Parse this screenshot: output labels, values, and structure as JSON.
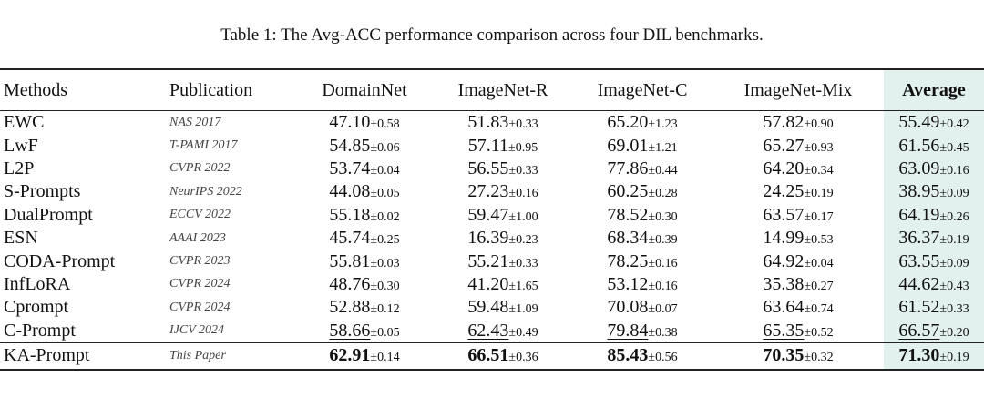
{
  "caption": "Table 1:  The Avg-ACC performance comparison across four DIL benchmarks.",
  "headers": [
    "Methods",
    "Publication",
    "DomainNet",
    "ImageNet-R",
    "ImageNet-C",
    "ImageNet-Mix",
    "Average"
  ],
  "rows": [
    {
      "method": "EWC",
      "pub": "NAS 2017",
      "cells": [
        [
          "47.10",
          "±0.58"
        ],
        [
          "51.83",
          "±0.33"
        ],
        [
          "65.20",
          "±1.23"
        ],
        [
          "57.82",
          "±0.90"
        ],
        [
          "55.49",
          "±0.42"
        ]
      ]
    },
    {
      "method": "LwF",
      "pub": "T-PAMI 2017",
      "cells": [
        [
          "54.85",
          "±0.06"
        ],
        [
          "57.11",
          "±0.95"
        ],
        [
          "69.01",
          "±1.21"
        ],
        [
          "65.27",
          "±0.93"
        ],
        [
          "61.56",
          "±0.45"
        ]
      ]
    },
    {
      "method": "L2P",
      "pub": "CVPR 2022",
      "cells": [
        [
          "53.74",
          "±0.04"
        ],
        [
          "56.55",
          "±0.33"
        ],
        [
          "77.86",
          "±0.44"
        ],
        [
          "64.20",
          "±0.34"
        ],
        [
          "63.09",
          "±0.16"
        ]
      ]
    },
    {
      "method": "S-Prompts",
      "pub": "NeurIPS 2022",
      "cells": [
        [
          "44.08",
          "±0.05"
        ],
        [
          "27.23",
          "±0.16"
        ],
        [
          "60.25",
          "±0.28"
        ],
        [
          "24.25",
          "±0.19"
        ],
        [
          "38.95",
          "±0.09"
        ]
      ]
    },
    {
      "method": "DualPrompt",
      "pub": "ECCV 2022",
      "cells": [
        [
          "55.18",
          "±0.02"
        ],
        [
          "59.47",
          "±1.00"
        ],
        [
          "78.52",
          "±0.30"
        ],
        [
          "63.57",
          "±0.17"
        ],
        [
          "64.19",
          "±0.26"
        ]
      ]
    },
    {
      "method": "ESN",
      "pub": "AAAI 2023",
      "cells": [
        [
          "45.74",
          "±0.25"
        ],
        [
          "16.39",
          "±0.23"
        ],
        [
          "68.34",
          "±0.39"
        ],
        [
          "14.99",
          "±0.53"
        ],
        [
          "36.37",
          "±0.19"
        ]
      ]
    },
    {
      "method": "CODA-Prompt",
      "pub": "CVPR 2023",
      "cells": [
        [
          "55.81",
          "±0.03"
        ],
        [
          "55.21",
          "±0.33"
        ],
        [
          "78.25",
          "±0.16"
        ],
        [
          "64.92",
          "±0.04"
        ],
        [
          "63.55",
          "±0.09"
        ]
      ]
    },
    {
      "method": "InfLoRA",
      "pub": "CVPR 2024",
      "cells": [
        [
          "48.76",
          "±0.30"
        ],
        [
          "41.20",
          "±1.65"
        ],
        [
          "53.12",
          "±0.16"
        ],
        [
          "35.38",
          "±0.27"
        ],
        [
          "44.62",
          "±0.43"
        ]
      ]
    },
    {
      "method": "Cprompt",
      "pub": "CVPR 2024",
      "cells": [
        [
          "52.88",
          "±0.12"
        ],
        [
          "59.48",
          "±1.09"
        ],
        [
          "70.08",
          "±0.07"
        ],
        [
          "63.64",
          "±0.74"
        ],
        [
          "61.52",
          "±0.33"
        ]
      ]
    },
    {
      "method": "C-Prompt",
      "pub": "IJCV 2024",
      "style": "underline",
      "cells": [
        [
          "58.66",
          "±0.05"
        ],
        [
          "62.43",
          "±0.49"
        ],
        [
          "79.84",
          "±0.38"
        ],
        [
          "65.35",
          "±0.52"
        ],
        [
          "66.57",
          "±0.20"
        ]
      ]
    },
    {
      "method": "KA-Prompt",
      "pub": "This Paper",
      "style": "bold",
      "cells": [
        [
          "62.91",
          "±0.14"
        ],
        [
          "66.51",
          "±0.36"
        ],
        [
          "85.43",
          "±0.56"
        ],
        [
          "70.35",
          "±0.32"
        ],
        [
          "71.30",
          "±0.19"
        ]
      ]
    }
  ]
}
